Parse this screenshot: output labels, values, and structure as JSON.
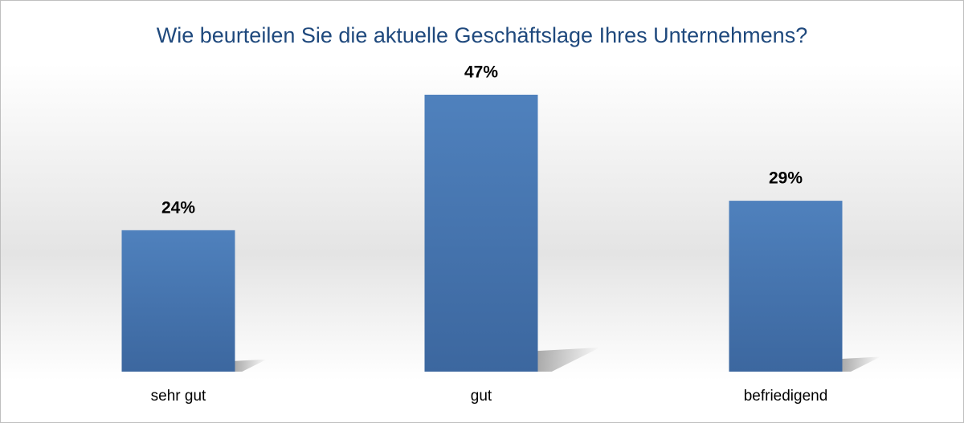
{
  "chart_data": {
    "type": "bar",
    "title": "Wie beurteilen Sie die aktuelle Geschäftslage Ihres Unternehmens?",
    "categories": [
      "sehr gut",
      "gut",
      "befriedigend"
    ],
    "values": [
      24,
      47,
      29
    ],
    "value_labels": [
      "24%",
      "47%",
      "29%"
    ],
    "color": "#4f81bd"
  }
}
